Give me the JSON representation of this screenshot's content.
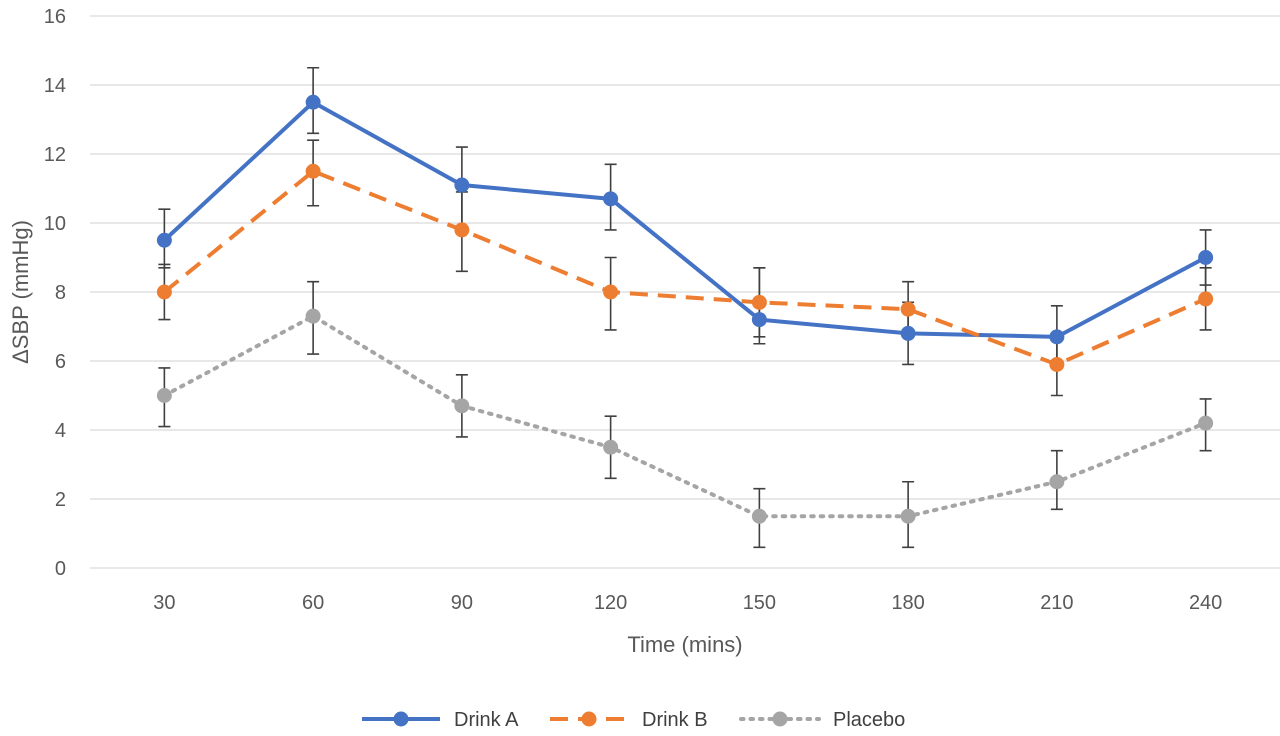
{
  "chart_data": {
    "type": "line",
    "title": "",
    "xlabel": "Time (mins)",
    "ylabel": "ΔSBP (mmHg)",
    "categories": [
      "30",
      "60",
      "90",
      "120",
      "150",
      "180",
      "210",
      "240"
    ],
    "ylim": [
      0,
      16
    ],
    "yticks": [
      "0",
      "2",
      "4",
      "6",
      "8",
      "10",
      "12",
      "14",
      "16"
    ],
    "grid": true,
    "legend_position": "bottom",
    "series": [
      {
        "name": "Drink A",
        "color": "#4472c4",
        "line_style": "solid",
        "values": [
          9.5,
          13.5,
          11.1,
          10.7,
          7.2,
          6.8,
          6.7,
          9.0
        ],
        "err_low": [
          8.7,
          12.6,
          9.8,
          9.8,
          6.7,
          5.9,
          5.8,
          8.2
        ],
        "err_high": [
          10.4,
          14.5,
          12.2,
          11.7,
          8.7,
          7.7,
          7.6,
          9.8
        ]
      },
      {
        "name": "Drink B",
        "color": "#ed7d31",
        "line_style": "dashed",
        "values": [
          8.0,
          11.5,
          9.8,
          8.0,
          7.7,
          7.5,
          5.9,
          7.8
        ],
        "err_low": [
          7.2,
          10.5,
          8.6,
          6.9,
          6.5,
          6.7,
          5.0,
          6.9
        ],
        "err_high": [
          8.8,
          12.4,
          10.9,
          9.0,
          8.7,
          8.3,
          6.8,
          8.7
        ]
      },
      {
        "name": "Placebo",
        "color": "#a5a5a5",
        "line_style": "dotted",
        "values": [
          5.0,
          7.3,
          4.7,
          3.5,
          1.5,
          1.5,
          2.5,
          4.2
        ],
        "err_low": [
          4.1,
          6.2,
          3.8,
          2.6,
          0.6,
          0.6,
          1.7,
          3.4
        ],
        "err_high": [
          5.8,
          8.3,
          5.6,
          4.4,
          2.3,
          2.5,
          3.4,
          4.9
        ]
      }
    ]
  }
}
